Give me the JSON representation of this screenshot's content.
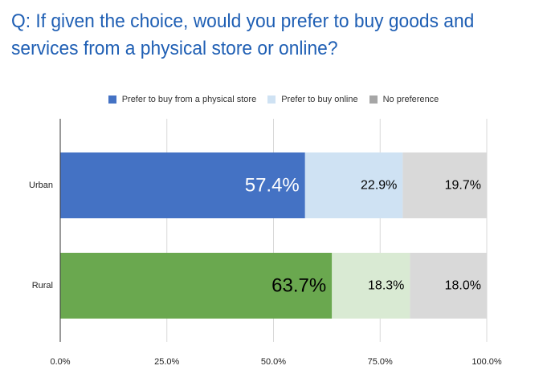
{
  "title": "Q: If given the choice, would you prefer to buy goods and services from a physical store or online?",
  "legend": [
    {
      "label": "Prefer to buy from a physical store",
      "color": "#4472c4"
    },
    {
      "label": "Prefer to buy online",
      "color": "#cfe2f3"
    },
    {
      "label": "No preference",
      "color": "#a6a6a6"
    }
  ],
  "chart_data": {
    "type": "bar",
    "orientation": "horizontal",
    "stacked": true,
    "categories": [
      "Urban",
      "Rural"
    ],
    "series": [
      {
        "name": "Prefer to buy from a physical store",
        "values": [
          57.4,
          63.7
        ],
        "labels": [
          "57.4%",
          "63.7%"
        ]
      },
      {
        "name": "Prefer to buy online",
        "values": [
          22.9,
          18.3
        ],
        "labels": [
          "22.9%",
          "18.3%"
        ]
      },
      {
        "name": "No preference",
        "values": [
          19.7,
          18.0
        ],
        "labels": [
          "19.7%",
          "18.0%"
        ]
      }
    ],
    "segment_colors": [
      [
        "#4472c4",
        "#cfe2f3",
        "#d9d9d9"
      ],
      [
        "#6aa84f",
        "#d9ead3",
        "#d9d9d9"
      ]
    ],
    "label_colors": [
      [
        "#ffffff",
        "#000000",
        "#000000"
      ],
      [
        "#000000",
        "#000000",
        "#000000"
      ]
    ],
    "xlim": [
      0,
      100
    ],
    "xticks": [
      0,
      25,
      50,
      75,
      100
    ],
    "xtick_labels": [
      "0.0%",
      "25.0%",
      "50.0%",
      "75.0%",
      "100.0%"
    ],
    "grid": true,
    "legend_position": "top"
  }
}
